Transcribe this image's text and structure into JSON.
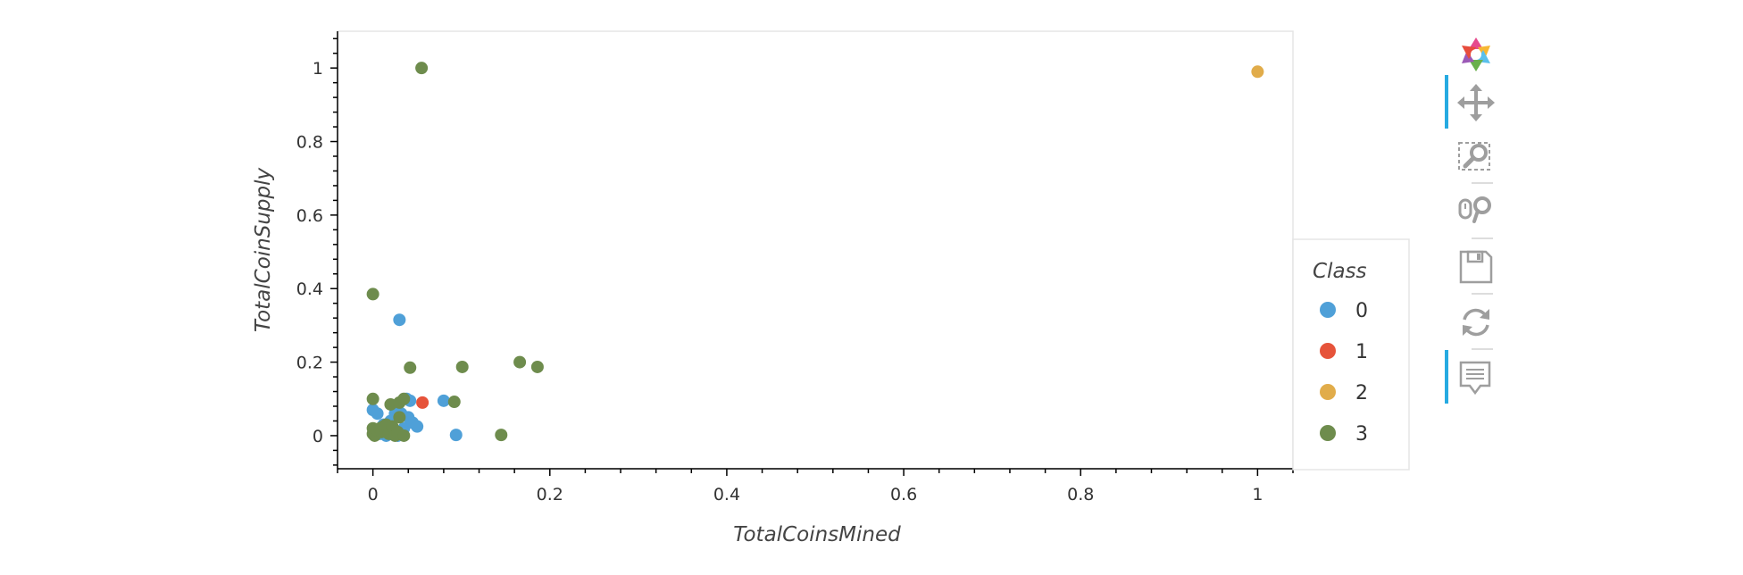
{
  "chart_data": {
    "type": "scatter",
    "title": "",
    "xlabel": "TotalCoinsMined",
    "ylabel": "TotalCoinSupply",
    "xlim": [
      -0.04,
      1.04
    ],
    "ylim": [
      -0.09,
      1.1
    ],
    "xticks": [
      "0",
      "0.2",
      "0.4",
      "0.6",
      "0.8",
      "1"
    ],
    "yticks": [
      "0",
      "0.2",
      "0.4",
      "0.6",
      "0.8",
      "1"
    ],
    "legend": {
      "title": "Class",
      "position": "right",
      "entries": [
        "0",
        "1",
        "2",
        "3"
      ]
    },
    "series": [
      {
        "name": "0",
        "color": "#4fa0d8",
        "points": [
          [
            0.0,
            0.07
          ],
          [
            0.002,
            0.015
          ],
          [
            0.005,
            0.06
          ],
          [
            0.008,
            0.005
          ],
          [
            0.01,
            0.02
          ],
          [
            0.012,
            0.03
          ],
          [
            0.015,
            0.0
          ],
          [
            0.018,
            0.02
          ],
          [
            0.02,
            0.04
          ],
          [
            0.022,
            0.01
          ],
          [
            0.025,
            0.06
          ],
          [
            0.028,
            0.0
          ],
          [
            0.03,
            0.315
          ],
          [
            0.032,
            0.06
          ],
          [
            0.035,
            0.02
          ],
          [
            0.038,
            0.1
          ],
          [
            0.04,
            0.05
          ],
          [
            0.042,
            0.095
          ],
          [
            0.045,
            0.035
          ],
          [
            0.05,
            0.025
          ],
          [
            0.08,
            0.095
          ],
          [
            0.094,
            0.002
          ]
        ]
      },
      {
        "name": "1",
        "color": "#e6533a",
        "points": [
          [
            0.056,
            0.09
          ]
        ]
      },
      {
        "name": "2",
        "color": "#e1ac4a",
        "points": [
          [
            1.0,
            0.99
          ]
        ]
      },
      {
        "name": "3",
        "color": "#6e8c4d",
        "points": [
          [
            0.0,
            0.385
          ],
          [
            0.0,
            0.1
          ],
          [
            0.0,
            0.005
          ],
          [
            0.0,
            0.02
          ],
          [
            0.002,
            0.0
          ],
          [
            0.005,
            0.015
          ],
          [
            0.008,
            0.02
          ],
          [
            0.01,
            0.01
          ],
          [
            0.012,
            0.025
          ],
          [
            0.015,
            0.03
          ],
          [
            0.018,
            0.005
          ],
          [
            0.02,
            0.085
          ],
          [
            0.022,
            0.025
          ],
          [
            0.025,
            0.0
          ],
          [
            0.028,
            0.01
          ],
          [
            0.03,
            0.09
          ],
          [
            0.03,
            0.05
          ],
          [
            0.035,
            0.1
          ],
          [
            0.035,
            0.0
          ],
          [
            0.042,
            0.185
          ],
          [
            0.055,
            1.0
          ],
          [
            0.092,
            0.092
          ],
          [
            0.101,
            0.187
          ],
          [
            0.145,
            0.002
          ],
          [
            0.166,
            0.2
          ],
          [
            0.186,
            0.187
          ]
        ]
      }
    ]
  },
  "toolbar": {
    "logo": "bokeh-logo-icon",
    "tools": [
      {
        "icon": "pan-icon",
        "active": true
      },
      {
        "icon": "box-zoom-icon",
        "active": false
      },
      {
        "icon": "wheel-zoom-icon",
        "active": false
      },
      {
        "icon": "save-icon",
        "active": false
      },
      {
        "icon": "reset-icon",
        "active": false
      },
      {
        "icon": "hover-icon",
        "active": true
      }
    ]
  }
}
